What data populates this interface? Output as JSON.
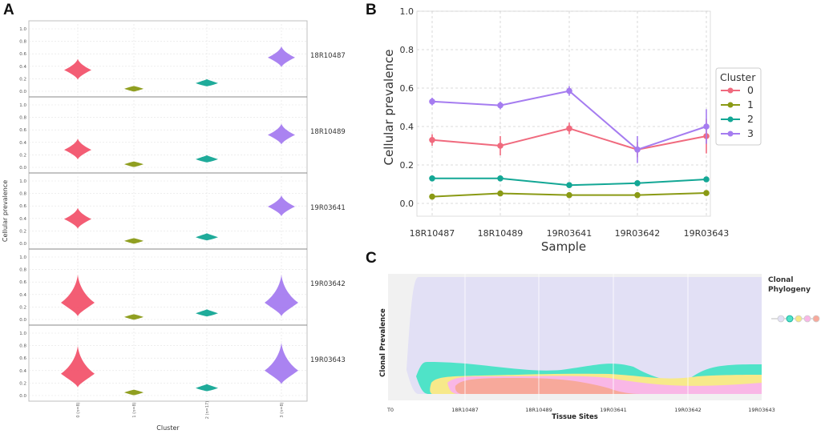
{
  "panel_labels": {
    "a": "A",
    "b": "B",
    "c": "C"
  },
  "chart_data": [
    {
      "type": "violin",
      "panel": "A",
      "xlabel": "Cluster",
      "ylabel": "Cellular prevalence",
      "categories": [
        "0 (n=8)",
        "1 (n=8)",
        "2 (n=17)",
        "3 (n=8)"
      ],
      "yticks": [
        "0.0",
        "0.2",
        "0.4",
        "0.6",
        "0.8",
        "1.0"
      ],
      "ylim": [
        0,
        1
      ],
      "colors": [
        "#f2546d",
        "#8a9a15",
        "#13a795",
        "#a57cf0"
      ],
      "samples": [
        {
          "name": "18R10487",
          "medians": [
            0.34,
            0.04,
            0.13,
            0.54
          ]
        },
        {
          "name": "18R10489",
          "medians": [
            0.28,
            0.05,
            0.13,
            0.52
          ]
        },
        {
          "name": "19R03641",
          "medians": [
            0.39,
            0.04,
            0.1,
            0.59
          ]
        },
        {
          "name": "19R03642",
          "medians": [
            0.27,
            0.04,
            0.1,
            0.27
          ]
        },
        {
          "name": "19R03643",
          "medians": [
            0.35,
            0.05,
            0.12,
            0.4
          ]
        }
      ]
    },
    {
      "type": "line",
      "panel": "B",
      "xlabel": "Sample",
      "ylabel": "Cellular prevalence",
      "categories": [
        "18R10487",
        "18R10489",
        "19R03641",
        "19R03642",
        "19R03643"
      ],
      "yticks": [
        "0.0",
        "0.2",
        "0.4",
        "0.6",
        "0.8",
        "1.0"
      ],
      "ylim": [
        0,
        1
      ],
      "grid": true,
      "legend": {
        "title": "Cluster",
        "placement": "right"
      },
      "series": [
        {
          "name": "0",
          "color": "#f06a7e",
          "values": [
            0.33,
            0.3,
            0.39,
            0.28,
            0.35
          ],
          "err": [
            0.03,
            0.05,
            0.03,
            0.04,
            0.09
          ]
        },
        {
          "name": "1",
          "color": "#8a9a15",
          "values": [
            0.035,
            0.052,
            0.043,
            0.043,
            0.054
          ],
          "err": [
            0.005,
            0.006,
            0.005,
            0.005,
            0.006
          ]
        },
        {
          "name": "2",
          "color": "#13a795",
          "values": [
            0.13,
            0.13,
            0.095,
            0.105,
            0.125
          ],
          "err": [
            0.005,
            0.005,
            0.005,
            0.005,
            0.005
          ]
        },
        {
          "name": "3",
          "color": "#a57cf0",
          "values": [
            0.53,
            0.51,
            0.585,
            0.28,
            0.4
          ],
          "err": [
            0.02,
            0.02,
            0.025,
            0.07,
            0.09
          ]
        }
      ]
    },
    {
      "type": "area",
      "panel": "C",
      "xlabel": "Tissue Sites",
      "ylabel": "Clonal Prevalence",
      "categories": [
        "T0",
        "18R10487",
        "18R10489",
        "19R03641",
        "19R03642",
        "19R03643"
      ],
      "legend": {
        "title_line1": "Clonal",
        "title_line2": "Phylogeny",
        "placement": "right"
      },
      "clone_colors": [
        "#e2e0f5",
        "#4fe3c8",
        "#f7e98a",
        "#f9b7e6",
        "#f7a99b"
      ]
    }
  ]
}
